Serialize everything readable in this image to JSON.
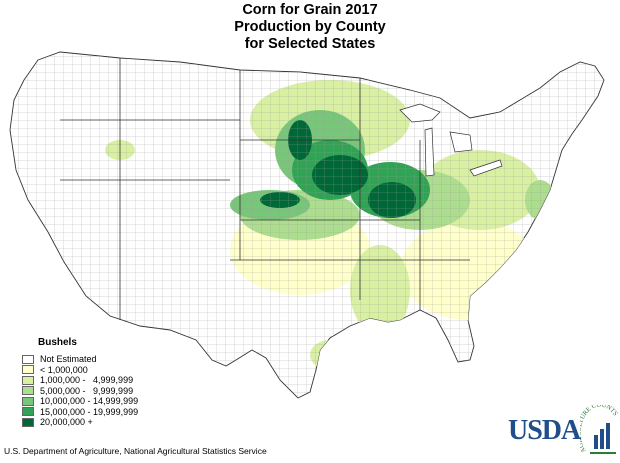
{
  "title": {
    "line1": "Corn for Grain 2017",
    "line2": "Production by County",
    "line3": "for Selected States"
  },
  "legend": {
    "title": "Bushels",
    "items": [
      {
        "label": "Not Estimated",
        "color": "#ffffff"
      },
      {
        "label": "< 1,000,000",
        "color": "#ffffcc"
      },
      {
        "label": "1,000,000 -   4,999,999",
        "color": "#d9f0a3"
      },
      {
        "label": "5,000,000 -   9,999,999",
        "color": "#addd8e"
      },
      {
        "label": "10,000,000 - 14,999,999",
        "color": "#78c679"
      },
      {
        "label": "15,000,000 - 19,999,999",
        "color": "#31a354"
      },
      {
        "label": "20,000,000 +",
        "color": "#006837"
      }
    ]
  },
  "footer": "U.S. Department of Agriculture, National Agricultural Statistics Service",
  "logo": {
    "wordmark": "USDA",
    "arc_text": "AGRICULTURE COUNTS"
  }
}
